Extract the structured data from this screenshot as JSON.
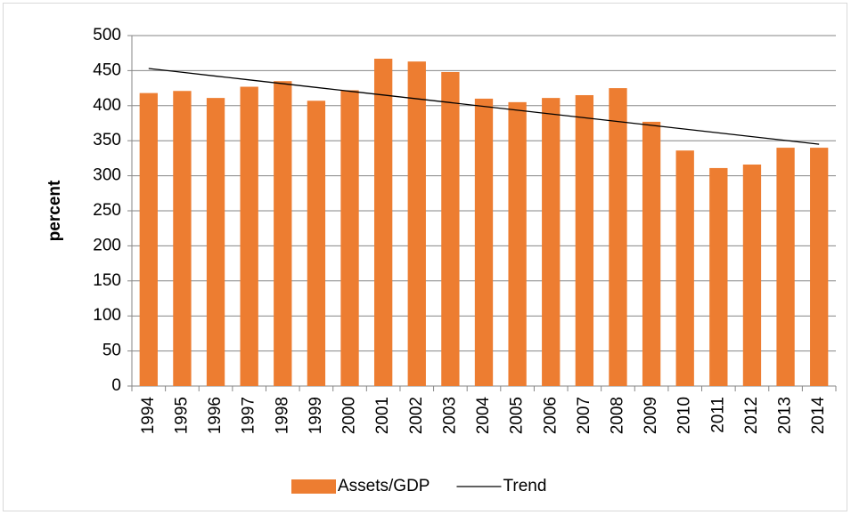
{
  "chart_data": {
    "type": "bar",
    "y_label": "percent",
    "categories": [
      "1994",
      "1995",
      "1996",
      "1997",
      "1998",
      "1999",
      "2000",
      "2001",
      "2002",
      "2003",
      "2004",
      "2005",
      "2006",
      "2007",
      "2008",
      "2009",
      "2010",
      "2011",
      "2012",
      "2013",
      "2014"
    ],
    "series": [
      {
        "name": "Assets/GDP",
        "type": "bar",
        "color": "#ed7d31",
        "values": [
          418,
          421,
          411,
          427,
          435,
          407,
          422,
          467,
          463,
          448,
          410,
          405,
          411,
          415,
          425,
          377,
          336,
          311,
          316,
          340,
          340
        ]
      },
      {
        "name": "Trend",
        "type": "line",
        "color": "#000000",
        "values": [
          453,
          447.6,
          442.2,
          436.8,
          431.4,
          426,
          420.6,
          415.2,
          409.8,
          404.4,
          399,
          393.6,
          388.2,
          382.8,
          377.4,
          372,
          366.6,
          361.2,
          355.8,
          350.4,
          345
        ]
      }
    ],
    "ylim": [
      0,
      500
    ],
    "yticks": [
      0,
      50,
      100,
      150,
      200,
      250,
      300,
      350,
      400,
      450,
      500
    ],
    "grid": true,
    "legend": "bottom"
  }
}
